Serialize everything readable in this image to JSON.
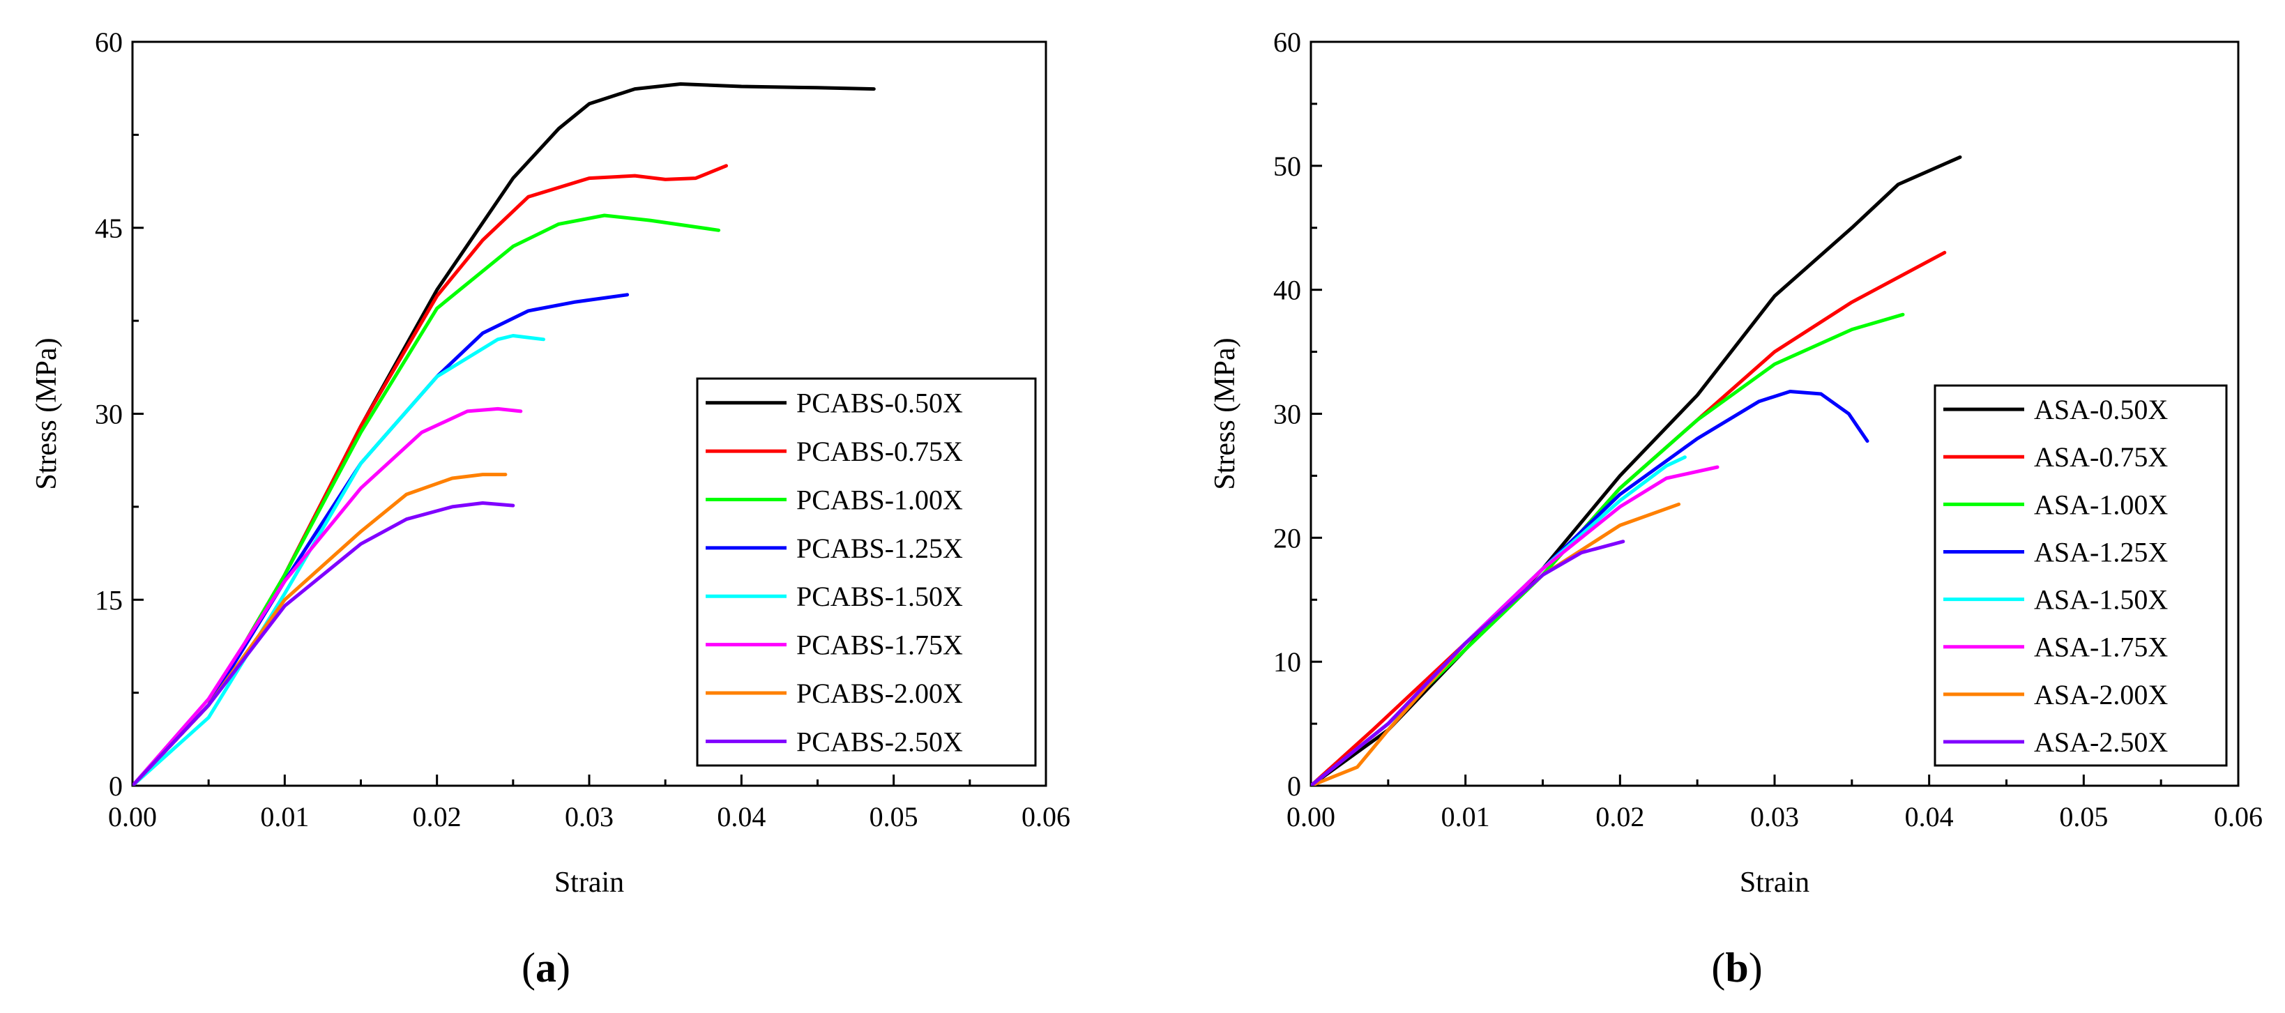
{
  "figure": {
    "panels": [
      {
        "label_open": "(",
        "label_letter": "a",
        "label_close": ")"
      },
      {
        "label_open": "(",
        "label_letter": "b",
        "label_close": ")"
      }
    ]
  },
  "chart_data": [
    {
      "type": "line",
      "panel": "a",
      "title": "",
      "xlabel": "Strain",
      "ylabel": "Stress (MPa)",
      "xlim": [
        0,
        0.06
      ],
      "ylim": [
        0,
        60
      ],
      "xticks": [
        "0.00",
        "0.01",
        "0.02",
        "0.03",
        "0.04",
        "0.05",
        "0.06"
      ],
      "yticks": [
        "0",
        "15",
        "30",
        "45",
        "60"
      ],
      "xtick_values": [
        0,
        0.01,
        0.02,
        0.03,
        0.04,
        0.05,
        0.06
      ],
      "ytick_values": [
        0,
        15,
        30,
        45,
        60
      ],
      "legend_position": "lower-right",
      "series": [
        {
          "name": "PCABS-0.50X",
          "color": "#000000",
          "points": [
            [
              0,
              0
            ],
            [
              0.005,
              6.5
            ],
            [
              0.01,
              17
            ],
            [
              0.015,
              29
            ],
            [
              0.02,
              40
            ],
            [
              0.025,
              49
            ],
            [
              0.028,
              53
            ],
            [
              0.03,
              55
            ],
            [
              0.033,
              56.2
            ],
            [
              0.036,
              56.6
            ],
            [
              0.04,
              56.4
            ],
            [
              0.045,
              56.3
            ],
            [
              0.0487,
              56.2
            ]
          ]
        },
        {
          "name": "PCABS-0.75X",
          "color": "#ff0000",
          "points": [
            [
              0,
              0
            ],
            [
              0.005,
              6.5
            ],
            [
              0.01,
              17
            ],
            [
              0.015,
              29
            ],
            [
              0.02,
              39.5
            ],
            [
              0.023,
              44
            ],
            [
              0.026,
              47.5
            ],
            [
              0.03,
              49
            ],
            [
              0.033,
              49.2
            ],
            [
              0.035,
              48.9
            ],
            [
              0.037,
              49
            ],
            [
              0.039,
              50
            ]
          ]
        },
        {
          "name": "PCABS-1.00X",
          "color": "#00ff00",
          "points": [
            [
              0,
              0
            ],
            [
              0.005,
              6.5
            ],
            [
              0.01,
              17
            ],
            [
              0.015,
              28.5
            ],
            [
              0.02,
              38.5
            ],
            [
              0.025,
              43.5
            ],
            [
              0.028,
              45.3
            ],
            [
              0.031,
              46
            ],
            [
              0.034,
              45.6
            ],
            [
              0.0385,
              44.8
            ]
          ]
        },
        {
          "name": "PCABS-1.25X",
          "color": "#0000ff",
          "points": [
            [
              0,
              0
            ],
            [
              0.005,
              6.5
            ],
            [
              0.01,
              16.5
            ],
            [
              0.015,
              26
            ],
            [
              0.02,
              33
            ],
            [
              0.023,
              36.5
            ],
            [
              0.026,
              38.3
            ],
            [
              0.029,
              39
            ],
            [
              0.0325,
              39.6
            ]
          ]
        },
        {
          "name": "PCABS-1.50X",
          "color": "#00ffff",
          "points": [
            [
              0,
              0
            ],
            [
              0.005,
              5.5
            ],
            [
              0.01,
              15.5
            ],
            [
              0.015,
              26
            ],
            [
              0.02,
              33
            ],
            [
              0.024,
              36
            ],
            [
              0.025,
              36.3
            ],
            [
              0.027,
              36
            ]
          ]
        },
        {
          "name": "PCABS-1.75X",
          "color": "#ff00ff",
          "points": [
            [
              0,
              0
            ],
            [
              0.005,
              7
            ],
            [
              0.01,
              16.5
            ],
            [
              0.015,
              24
            ],
            [
              0.019,
              28.5
            ],
            [
              0.022,
              30.2
            ],
            [
              0.024,
              30.4
            ],
            [
              0.0255,
              30.2
            ]
          ]
        },
        {
          "name": "PCABS-2.00X",
          "color": "#ff8000",
          "points": [
            [
              0,
              0
            ],
            [
              0.005,
              6.5
            ],
            [
              0.01,
              15
            ],
            [
              0.015,
              20.5
            ],
            [
              0.018,
              23.5
            ],
            [
              0.021,
              24.8
            ],
            [
              0.023,
              25.1
            ],
            [
              0.0245,
              25.1
            ]
          ]
        },
        {
          "name": "PCABS-2.50X",
          "color": "#8000ff",
          "points": [
            [
              0,
              0
            ],
            [
              0.005,
              6.5
            ],
            [
              0.01,
              14.5
            ],
            [
              0.015,
              19.5
            ],
            [
              0.018,
              21.5
            ],
            [
              0.021,
              22.5
            ],
            [
              0.023,
              22.8
            ],
            [
              0.025,
              22.6
            ]
          ]
        }
      ]
    },
    {
      "type": "line",
      "panel": "b",
      "title": "",
      "xlabel": "Strain",
      "ylabel": "Stress (MPa)",
      "xlim": [
        0,
        0.06
      ],
      "ylim": [
        0,
        60
      ],
      "xticks": [
        "0.00",
        "0.01",
        "0.02",
        "0.03",
        "0.04",
        "0.05",
        "0.06"
      ],
      "yticks": [
        "0",
        "10",
        "20",
        "30",
        "40",
        "50",
        "60"
      ],
      "xtick_values": [
        0,
        0.01,
        0.02,
        0.03,
        0.04,
        0.05,
        0.06
      ],
      "ytick_values": [
        0,
        10,
        20,
        30,
        40,
        50,
        60
      ],
      "legend_position": "lower-right",
      "series": [
        {
          "name": "ASA-0.50X",
          "color": "#000000",
          "points": [
            [
              0,
              0
            ],
            [
              0.005,
              4.5
            ],
            [
              0.01,
              11
            ],
            [
              0.015,
              17.5
            ],
            [
              0.02,
              25
            ],
            [
              0.025,
              31.5
            ],
            [
              0.03,
              39.5
            ],
            [
              0.035,
              45
            ],
            [
              0.038,
              48.5
            ],
            [
              0.042,
              50.7
            ]
          ]
        },
        {
          "name": "ASA-0.75X",
          "color": "#ff0000",
          "points": [
            [
              0,
              0
            ],
            [
              0.004,
              4.5
            ],
            [
              0.01,
              11.5
            ],
            [
              0.015,
              17
            ],
            [
              0.02,
              24
            ],
            [
              0.025,
              29.5
            ],
            [
              0.03,
              35
            ],
            [
              0.035,
              39
            ],
            [
              0.041,
              43
            ]
          ]
        },
        {
          "name": "ASA-1.00X",
          "color": "#00ff00",
          "points": [
            [
              0,
              0
            ],
            [
              0.005,
              5
            ],
            [
              0.01,
              11
            ],
            [
              0.015,
              17
            ],
            [
              0.02,
              24
            ],
            [
              0.025,
              29.5
            ],
            [
              0.03,
              34
            ],
            [
              0.035,
              36.8
            ],
            [
              0.0383,
              38
            ]
          ]
        },
        {
          "name": "ASA-1.25X",
          "color": "#0000ff",
          "points": [
            [
              0,
              0
            ],
            [
              0.005,
              5
            ],
            [
              0.01,
              11.5
            ],
            [
              0.015,
              17.5
            ],
            [
              0.02,
              23.5
            ],
            [
              0.025,
              28
            ],
            [
              0.029,
              31
            ],
            [
              0.031,
              31.8
            ],
            [
              0.033,
              31.6
            ],
            [
              0.0348,
              30
            ],
            [
              0.036,
              27.8
            ]
          ]
        },
        {
          "name": "ASA-1.50X",
          "color": "#00ffff",
          "points": [
            [
              0,
              0
            ],
            [
              0.005,
              5
            ],
            [
              0.01,
              11.5
            ],
            [
              0.015,
              17.5
            ],
            [
              0.02,
              23
            ],
            [
              0.023,
              25.8
            ],
            [
              0.0242,
              26.5
            ]
          ]
        },
        {
          "name": "ASA-1.75X",
          "color": "#ff00ff",
          "points": [
            [
              0,
              0
            ],
            [
              0.005,
              5
            ],
            [
              0.01,
              11.5
            ],
            [
              0.015,
              17.5
            ],
            [
              0.02,
              22.5
            ],
            [
              0.023,
              24.8
            ],
            [
              0.0263,
              25.7
            ]
          ]
        },
        {
          "name": "ASA-2.00X",
          "color": "#ff8000",
          "points": [
            [
              0,
              0
            ],
            [
              0.003,
              1.5
            ],
            [
              0.005,
              4.5
            ],
            [
              0.01,
              11.5
            ],
            [
              0.015,
              17
            ],
            [
              0.02,
              21
            ],
            [
              0.0238,
              22.7
            ]
          ]
        },
        {
          "name": "ASA-2.50X",
          "color": "#8000ff",
          "points": [
            [
              0,
              0
            ],
            [
              0.005,
              5
            ],
            [
              0.01,
              11.5
            ],
            [
              0.015,
              17
            ],
            [
              0.0175,
              18.8
            ],
            [
              0.0202,
              19.7
            ]
          ]
        }
      ]
    }
  ]
}
